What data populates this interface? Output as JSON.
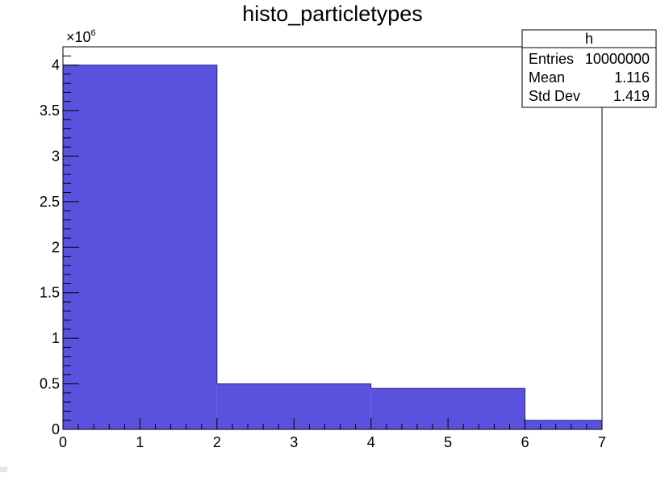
{
  "chart_data": {
    "type": "bar",
    "title": "histo_particletypes",
    "xlabel": "",
    "ylabel": "",
    "exponent_label": "×10",
    "exponent_power": "6",
    "bin_edges": [
      0,
      2,
      4,
      6,
      7
    ],
    "values": [
      4.0,
      0.5,
      0.45,
      0.1
    ],
    "xlim": [
      0,
      7
    ],
    "ylim": [
      0,
      4.2
    ],
    "x_ticks": [
      "0",
      "1",
      "2",
      "3",
      "4",
      "5",
      "6",
      "7"
    ],
    "y_ticks": [
      "0",
      "0.5",
      "1",
      "1.5",
      "2",
      "2.5",
      "3",
      "3.5",
      "4"
    ],
    "fill_color": "#5a52dc",
    "line_color": "#2a249c",
    "grid": false,
    "stats_box": {
      "name": "h",
      "rows": [
        {
          "label": "Entries",
          "value": "10000000"
        },
        {
          "label": "Mean",
          "value": "1.116"
        },
        {
          "label": "Std Dev",
          "value": "1.419"
        }
      ]
    }
  }
}
